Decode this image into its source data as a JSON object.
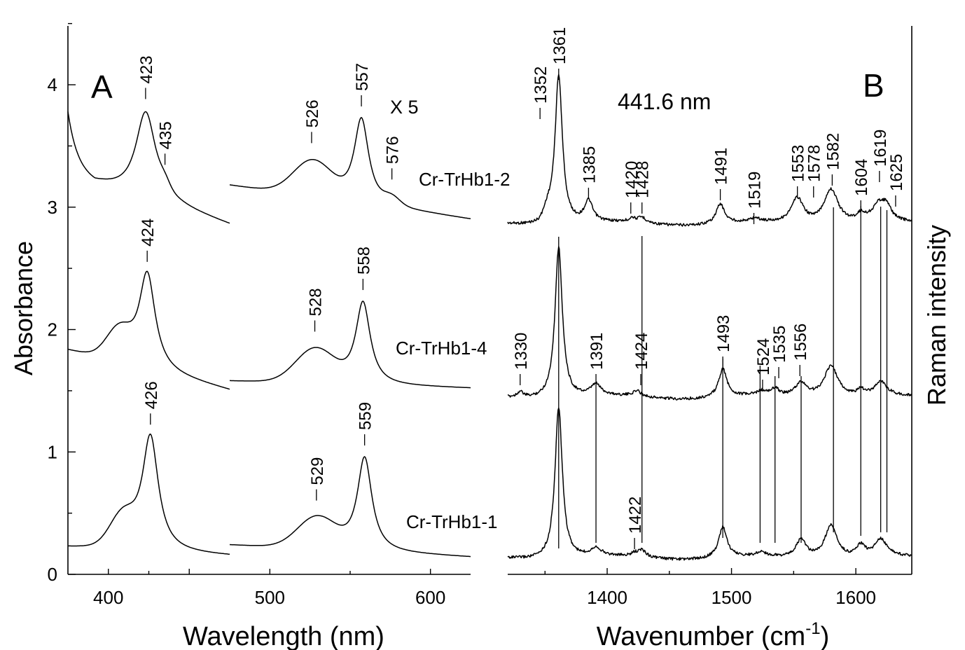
{
  "chart_data": [
    {
      "panel": "A",
      "type": "line",
      "ylabel": "Absorbance",
      "xlabel": "Wavelength (nm)",
      "yticks": [
        "0",
        "1",
        "2",
        "3",
        "4"
      ],
      "ylim": [
        0,
        4.5
      ],
      "soret_xticks": [
        "400"
      ],
      "soret_xlim": [
        375,
        475
      ],
      "q_xticks": [
        "500",
        "600"
      ],
      "q_xlim": [
        475,
        625
      ],
      "annotation_scale": "X 5",
      "series": [
        {
          "name": "Cr-TrHb1-2",
          "soret_peaks": [
            {
              "x": 423,
              "y": 3.78,
              "label": "423"
            },
            {
              "x": 435,
              "y": 3.3,
              "label": "435"
            }
          ],
          "q_peaks": [
            {
              "x": 526,
              "y": 3.42,
              "label": "526"
            },
            {
              "x": 557,
              "y": 3.72,
              "label": "557"
            },
            {
              "x": 576,
              "y": 3.18,
              "label": "576"
            }
          ]
        },
        {
          "name": "Cr-TrHb1-4",
          "soret_peaks": [
            {
              "x": 424,
              "y": 2.45,
              "label": "424"
            }
          ],
          "q_peaks": [
            {
              "x": 528,
              "y": 1.88,
              "label": "528"
            },
            {
              "x": 558,
              "y": 2.22,
              "label": "558"
            }
          ]
        },
        {
          "name": "Cr-TrHb1-1",
          "soret_peaks": [
            {
              "x": 426,
              "y": 1.12,
              "label": "426"
            }
          ],
          "q_peaks": [
            {
              "x": 529,
              "y": 0.5,
              "label": "529"
            },
            {
              "x": 559,
              "y": 0.95,
              "label": "559"
            }
          ]
        }
      ]
    },
    {
      "panel": "B",
      "type": "line",
      "xlabel": "Wavenumber (cm",
      "xlabel_sup": "-1",
      "xlabel_end": ")",
      "ylabel": "Raman intensity",
      "excitation": "441.6 nm",
      "xticks": [
        "1400",
        "1500",
        "1600"
      ],
      "xlim": [
        1320,
        1645
      ],
      "series": [
        {
          "name": "Cr-TrHb1-2",
          "bands": [
            "1352",
            "1361",
            "1385",
            "1420",
            "1428",
            "1491",
            "1519",
            "1553",
            "1578",
            "1582",
            "1604",
            "1619",
            "1625"
          ]
        },
        {
          "name": "Cr-TrHb1-4",
          "bands": [
            "1330",
            "1391",
            "1424",
            "1493",
            "1524",
            "1535",
            "1556"
          ]
        },
        {
          "name": "Cr-TrHb1-1",
          "bands": [
            "1422"
          ]
        }
      ]
    }
  ]
}
